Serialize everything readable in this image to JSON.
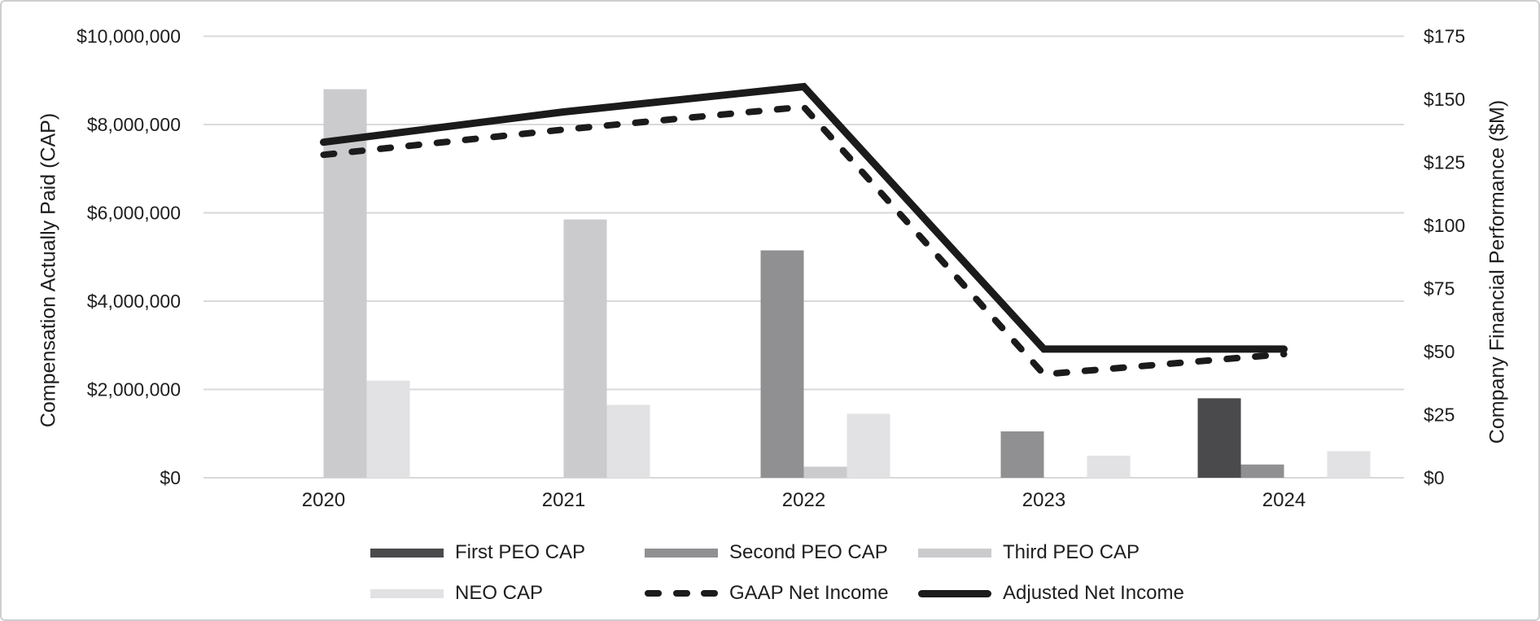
{
  "chart_data": {
    "type": "combo-bar-line",
    "categories": [
      "2020",
      "2021",
      "2022",
      "2023",
      "2024"
    ],
    "left_axis": {
      "title": "Compensation Actually Paid (CAP)",
      "ticks": [
        "$0",
        "$2,000,000",
        "$4,000,000",
        "$6,000,000",
        "$8,000,000",
        "$10,000,000"
      ],
      "tick_values": [
        0,
        2000000,
        4000000,
        6000000,
        8000000,
        10000000
      ],
      "ylim": [
        0,
        10000000
      ]
    },
    "right_axis": {
      "title": "Company Financial Performance ($M)",
      "ticks": [
        "$0",
        "$25",
        "$50",
        "$75",
        "$100",
        "$125",
        "$150",
        "$175"
      ],
      "tick_values": [
        0,
        25,
        50,
        75,
        100,
        125,
        150,
        175
      ],
      "ylim": [
        0,
        175
      ]
    },
    "bar_series": [
      {
        "name": "First PEO CAP",
        "color": "#4a4a4d",
        "values": [
          0,
          0,
          0,
          0,
          1800000
        ]
      },
      {
        "name": "Second PEO CAP",
        "color": "#909093",
        "values": [
          0,
          0,
          5150000,
          1050000,
          300000
        ]
      },
      {
        "name": "Third PEO CAP",
        "color": "#cbcbce",
        "values": [
          8800000,
          5850000,
          250000,
          0,
          0
        ]
      },
      {
        "name": "NEO CAP",
        "color": "#e2e2e4",
        "values": [
          2200000,
          1650000,
          1450000,
          500000,
          600000
        ]
      }
    ],
    "line_series": [
      {
        "name": "GAAP Net Income",
        "style": "dashed",
        "color": "#1b1b1b",
        "values": [
          128,
          138,
          147,
          41,
          49
        ]
      },
      {
        "name": "Adjusted Net Income",
        "style": "solid",
        "color": "#1b1b1b",
        "values": [
          133,
          145,
          155,
          51,
          51
        ]
      }
    ],
    "grid": true,
    "grid_color": "#d9d9d9",
    "axis_line_color": "#d9d9d9",
    "text_color": "#1e1e1e",
    "background_color": "#ffffff",
    "legend_position": "bottom"
  }
}
